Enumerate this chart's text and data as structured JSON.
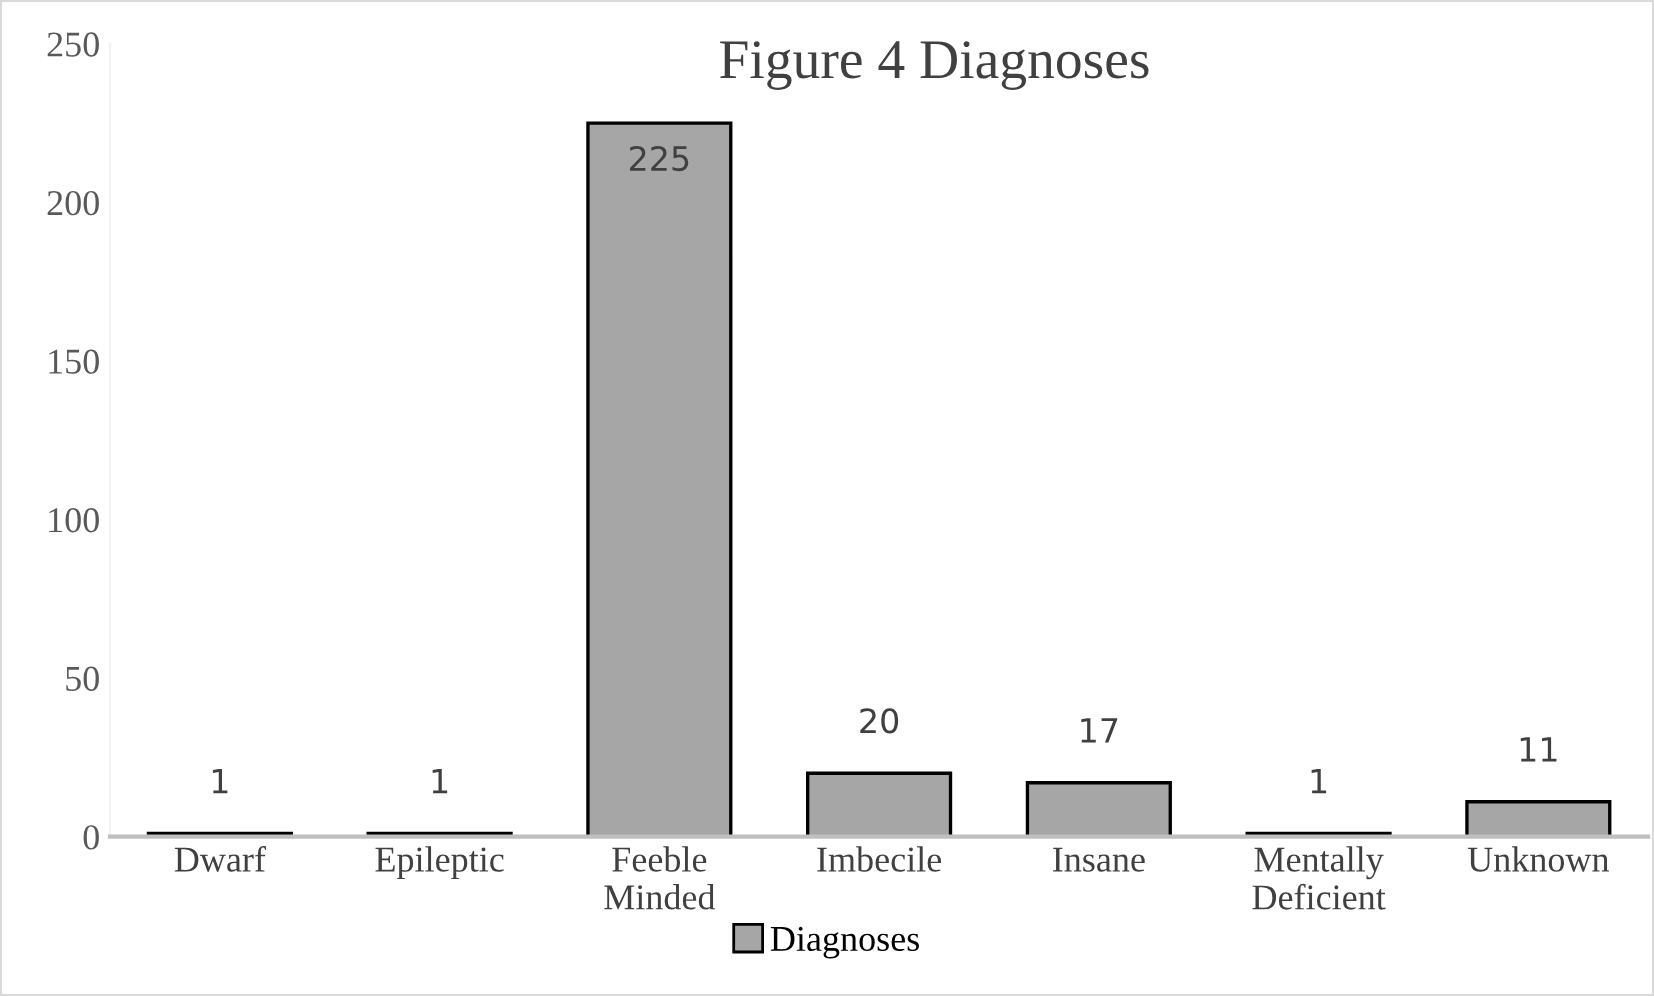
{
  "chart_data": {
    "type": "bar",
    "title": "Figure 4 Diagnoses",
    "categories": [
      "Dwarf",
      "Epileptic",
      "Feeble Minded",
      "Imbecile",
      "Insane",
      "Mentally Deficient",
      "Unknown"
    ],
    "series": [
      {
        "name": "Diagnoses",
        "color": "#a6a6a6",
        "values": [
          1,
          1,
          225,
          20,
          17,
          1,
          11
        ]
      }
    ],
    "ylim": [
      0,
      250
    ],
    "yticks": [
      0,
      50,
      100,
      150,
      200,
      250
    ],
    "grid": false,
    "data_labels": true,
    "legend": "bottom"
  }
}
